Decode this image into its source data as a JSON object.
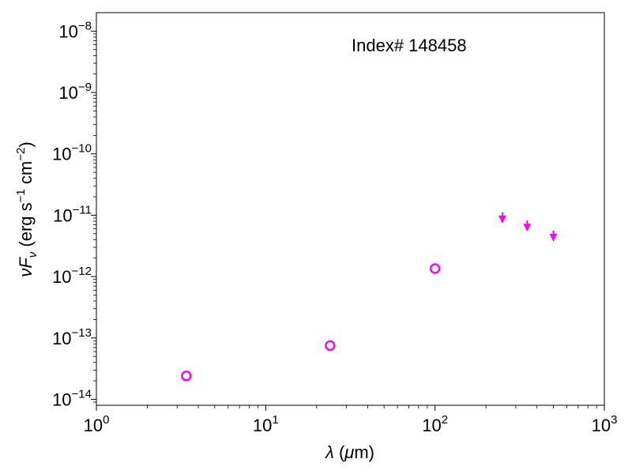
{
  "chart_data": {
    "type": "scatter",
    "annotation": "Index# 148458",
    "xlabel": "λ (μm)",
    "ylabel": "νF_ν (erg s⁻¹ cm⁻²)",
    "xscale": "log",
    "yscale": "log",
    "xlim": [
      1,
      1000
    ],
    "ylim": [
      8e-15,
      2e-08
    ],
    "x_ticks": [
      {
        "value": 1,
        "base": "10",
        "exp": "0"
      },
      {
        "value": 10,
        "base": "10",
        "exp": "1"
      },
      {
        "value": 100,
        "base": "10",
        "exp": "2"
      },
      {
        "value": 1000,
        "base": "10",
        "exp": "3"
      }
    ],
    "y_ticks": [
      {
        "value": 1e-14,
        "base": "10",
        "exp": "−14"
      },
      {
        "value": 1e-13,
        "base": "10",
        "exp": "−13"
      },
      {
        "value": 1e-12,
        "base": "10",
        "exp": "−12"
      },
      {
        "value": 1e-11,
        "base": "10",
        "exp": "−11"
      },
      {
        "value": 1e-10,
        "base": "10",
        "exp": "−10"
      },
      {
        "value": 1e-09,
        "base": "10",
        "exp": "−9"
      },
      {
        "value": 1e-08,
        "base": "10",
        "exp": "−8"
      }
    ],
    "detections": {
      "marker": "open-circle",
      "color": "#ff00ff",
      "x": [
        3.4,
        24,
        100
      ],
      "y": [
        2.4e-14,
        7.5e-14,
        1.35e-12
      ]
    },
    "upper_limits": {
      "marker": "down-arrow",
      "color": "#ff00ff",
      "x": [
        250,
        350,
        500
      ],
      "y": [
        6.5e-12,
        4.8e-12,
        3.3e-12
      ]
    },
    "grid": false,
    "legend": "none"
  }
}
